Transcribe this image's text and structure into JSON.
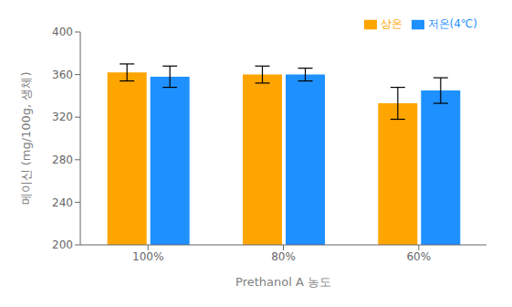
{
  "chart_data": {
    "type": "bar",
    "categories": [
      "100%",
      "80%",
      "60%"
    ],
    "series": [
      {
        "name": "상온",
        "color": "#FFA500",
        "values": [
          362,
          360,
          333
        ],
        "errors": [
          8,
          8,
          15
        ]
      },
      {
        "name": "저온(4℃)",
        "color": "#1E90FF",
        "values": [
          358,
          360,
          345
        ],
        "errors": [
          10,
          6,
          12
        ]
      }
    ],
    "xlabel": "Prethanol A 농도",
    "ylabel": "메이신 (mg/100g, 생체)",
    "ylim": [
      200,
      400
    ],
    "yticks": [
      200,
      240,
      280,
      320,
      360,
      400
    ],
    "grid": false,
    "legend": "upper right"
  }
}
